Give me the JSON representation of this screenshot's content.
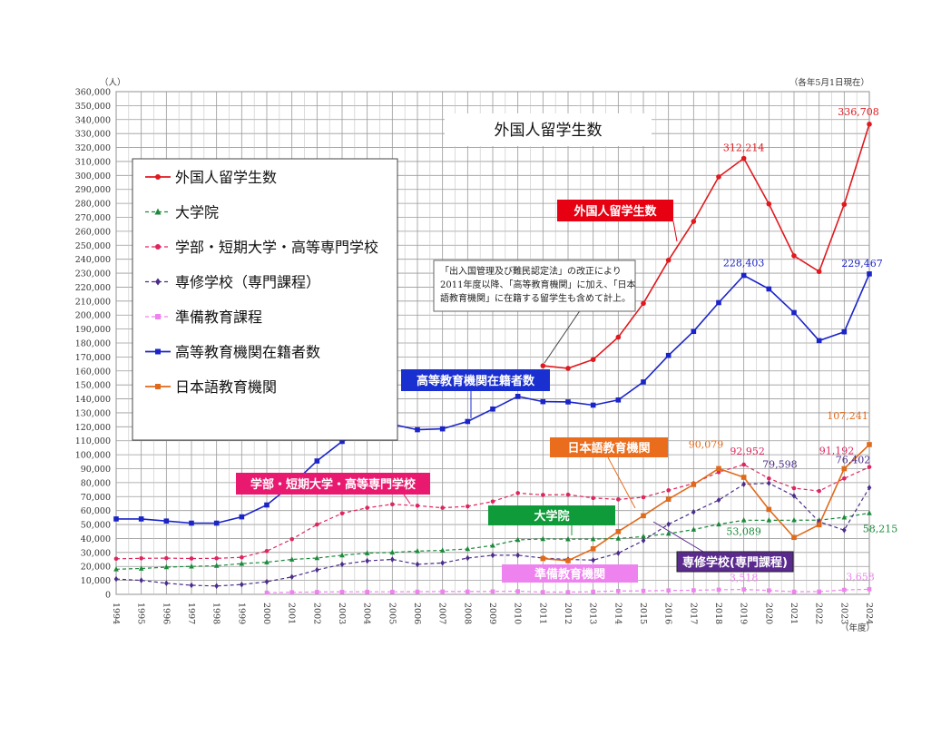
{
  "chart_data": {
    "type": "line",
    "title": "外国人留学生数",
    "y_unit": "（人）",
    "as_of": "（各年5月1日現在）",
    "x_unit": "（年度）",
    "ylim": [
      0,
      360000
    ],
    "y_ticks": [
      "0",
      "10,000",
      "20,000",
      "30,000",
      "40,000",
      "50,000",
      "60,000",
      "70,000",
      "80,000",
      "90,000",
      "100,000",
      "110,000",
      "120,000",
      "130,000",
      "140,000",
      "150,000",
      "160,000",
      "170,000",
      "180,000",
      "190,000",
      "200,000",
      "210,000",
      "220,000",
      "230,000",
      "240,000",
      "250,000",
      "260,000",
      "270,000",
      "280,000",
      "290,000",
      "300,000",
      "310,000",
      "320,000",
      "330,000",
      "340,000",
      "350,000",
      "360,000"
    ],
    "x": [
      "1994",
      "1995",
      "1996",
      "1997",
      "1998",
      "1999",
      "2000",
      "2001",
      "2002",
      "2003",
      "2004",
      "2005",
      "2006",
      "2007",
      "2008",
      "2009",
      "2010",
      "2011",
      "2012",
      "2013",
      "2014",
      "2015",
      "2016",
      "2017",
      "2018",
      "2019",
      "2020",
      "2021",
      "2022",
      "2023",
      "2024"
    ],
    "grid": true,
    "legend_position": "top-left",
    "series": [
      {
        "name": "外国人留学生数",
        "color": "#e0191e",
        "style": "solid",
        "marker": "circle",
        "box_label": "外国人留学生数",
        "box_color": "#e60012",
        "values": [
          null,
          null,
          null,
          null,
          null,
          null,
          null,
          null,
          null,
          null,
          null,
          null,
          null,
          null,
          null,
          null,
          null,
          163697,
          161848,
          168145,
          184155,
          208379,
          239287,
          267042,
          298980,
          312214,
          279597,
          242444,
          231146,
          279274,
          336708
        ]
      },
      {
        "name": "大学院",
        "color": "#1a8a3a",
        "style": "dashed",
        "marker": "triangle",
        "box_label": "大学院",
        "box_color": "#0f9b3a",
        "values": [
          18000,
          18500,
          19500,
          20000,
          20500,
          22000,
          23000,
          25000,
          26000,
          28000,
          29500,
          30000,
          31000,
          31500,
          32500,
          35000,
          39000,
          39700,
          39500,
          39600,
          39979,
          41396,
          43478,
          46373,
          50184,
          53089,
          53056,
          53122,
          53141,
          55143,
          58215
        ]
      },
      {
        "name": "学部・短期大学・高等専門学校",
        "color": "#e0245e",
        "style": "dashed",
        "marker": "circle",
        "box_label": "学部・短期大学・高等専門学校",
        "box_color": "#e8196f",
        "values": [
          25500,
          25800,
          25900,
          25700,
          25800,
          26500,
          31000,
          39500,
          50000,
          58000,
          62000,
          64500,
          63500,
          62000,
          63000,
          66500,
          72500,
          71200,
          71400,
          69000,
          68000,
          69500,
          74500,
          79500,
          87500,
          92952,
          83000,
          76000,
          74000,
          83000,
          91192
        ]
      },
      {
        "name": "専修学校（専門課程）",
        "color": "#4b2c8a",
        "style": "dashed",
        "marker": "diamond",
        "box_label": "専修学校(専門課程)",
        "box_color": "#5a2a8e",
        "values": [
          11000,
          10000,
          8000,
          6500,
          6000,
          7000,
          9000,
          12500,
          17500,
          21500,
          24000,
          25000,
          21500,
          22500,
          26000,
          28000,
          28000,
          26000,
          25000,
          24500,
          29500,
          38500,
          50200,
          59000,
          67500,
          78844,
          79598,
          70500,
          52000,
          46000,
          76402
        ]
      },
      {
        "name": "準備教育課程",
        "color": "#ee82ee",
        "style": "dashed",
        "marker": "square",
        "box_label": "準備教育機関",
        "box_color": "#ee82ee",
        "values": [
          null,
          null,
          null,
          null,
          null,
          null,
          1200,
          1500,
          1700,
          1800,
          1800,
          1800,
          1900,
          2000,
          2000,
          2100,
          2200,
          1600,
          1600,
          1900,
          2400,
          2500,
          2800,
          2900,
          3300,
          3518,
          2800,
          1900,
          2000,
          3200,
          3658
        ]
      },
      {
        "name": "高等教育機関在籍者数",
        "color": "#1a24c8",
        "style": "solid",
        "marker": "square",
        "box_label": "高等教育機関在籍者数",
        "box_color": "#1a2fd0",
        "values": [
          54000,
          54000,
          52500,
          51000,
          51000,
          55500,
          64000,
          78500,
          95500,
          109500,
          117300,
          121800,
          117900,
          118500,
          123800,
          132700,
          141800,
          138000,
          137800,
          135500,
          139200,
          152100,
          171100,
          188300,
          208900,
          228403,
          218700,
          201800,
          181700,
          188000,
          229467
        ]
      },
      {
        "name": "日本語教育機関",
        "color": "#e06a1a",
        "style": "solid",
        "marker": "square",
        "box_label": "日本語教育機関",
        "box_color": "#e96d1c",
        "values": [
          null,
          null,
          null,
          null,
          null,
          null,
          null,
          null,
          null,
          null,
          null,
          null,
          null,
          null,
          null,
          null,
          null,
          25622,
          24092,
          32626,
          44970,
          56317,
          68165,
          78658,
          90079,
          83811,
          60814,
          40766,
          49858,
          90000,
          107241
        ]
      }
    ],
    "data_labels": [
      {
        "series": "外国人留学生数",
        "x": "2019",
        "text": "312,214",
        "color": "#e0191e"
      },
      {
        "series": "外国人留学生数",
        "x": "2024",
        "text": "336,708",
        "color": "#e0191e"
      },
      {
        "series": "高等教育機関在籍者数",
        "x": "2019",
        "text": "228,403",
        "color": "#1a24c8"
      },
      {
        "series": "高等教育機関在籍者数",
        "x": "2024",
        "text": "229,467",
        "color": "#1a24c8"
      },
      {
        "series": "日本語教育機関",
        "x": "2018",
        "text": "90,079",
        "color": "#e06a1a"
      },
      {
        "series": "日本語教育機関",
        "x": "2024",
        "text": "107,241",
        "color": "#e06a1a"
      },
      {
        "series": "学部・短期大学・高等専門学校",
        "x": "2019",
        "text": "92,952",
        "color": "#e0245e"
      },
      {
        "series": "学部・短期大学・高等専門学校",
        "x": "2024",
        "text": "91,192",
        "color": "#e0245e"
      },
      {
        "series": "専修学校（専門課程）",
        "x": "2020",
        "text": "79,598",
        "color": "#4b2c8a"
      },
      {
        "series": "専修学校（専門課程）",
        "x": "2024",
        "text": "76,402",
        "color": "#4b2c8a"
      },
      {
        "series": "大学院",
        "x": "2019",
        "text": "53,089",
        "color": "#1a8a3a"
      },
      {
        "series": "大学院",
        "x": "2024",
        "text": "58,215",
        "color": "#1a8a3a"
      },
      {
        "series": "準備教育課程",
        "x": "2019",
        "text": "3,518",
        "color": "#ee82ee"
      },
      {
        "series": "準備教育課程",
        "x": "2024",
        "text": "3,658",
        "color": "#ee82ee"
      }
    ],
    "annotation": [
      "「出入国管理及び難民認定法」の改正により",
      "2011年度以降、「高等教育機関」に加え、「日本",
      "語教育機関」に在籍する留学生も含めて計上。"
    ]
  }
}
